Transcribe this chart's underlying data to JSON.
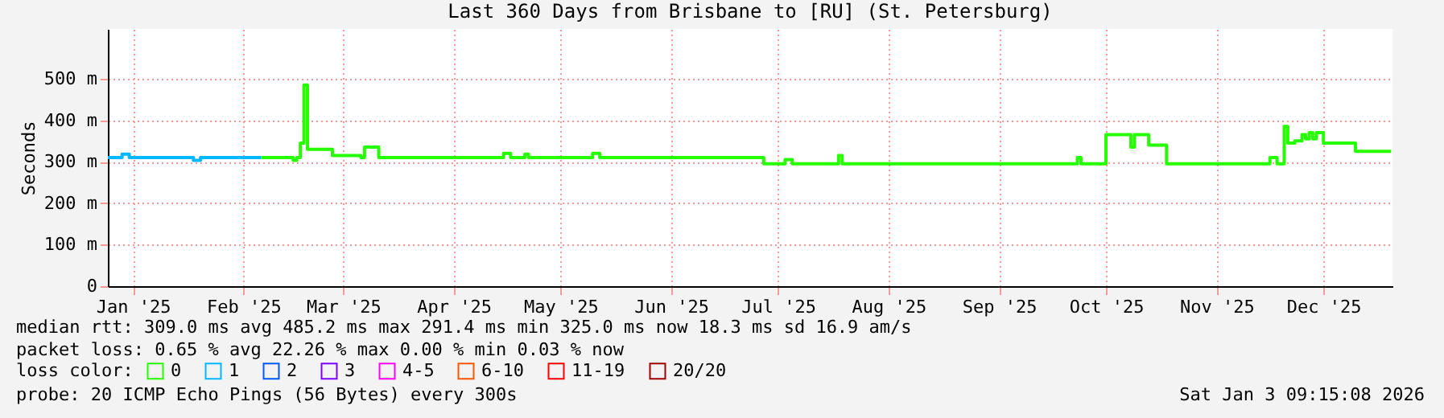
{
  "chart_data": {
    "type": "line",
    "title": "Last 360 Days from Brisbane to [RU] (St. Petersburg)",
    "ylabel": "Seconds",
    "xlim": [
      "2025-01-08T00:00",
      "2026-01-03T09:15"
    ],
    "xticks": [
      {
        "value": "2025-01-15",
        "label": "Jan '25"
      },
      {
        "value": "2025-02-15",
        "label": "Feb '25"
      },
      {
        "value": "2025-03-15",
        "label": "Mar '25"
      },
      {
        "value": "2025-04-15",
        "label": "Apr '25"
      },
      {
        "value": "2025-05-15",
        "label": "May '25"
      },
      {
        "value": "2025-06-15",
        "label": "Jun '25"
      },
      {
        "value": "2025-07-15",
        "label": "Jul '25"
      },
      {
        "value": "2025-08-15",
        "label": "Aug '25"
      },
      {
        "value": "2025-09-15",
        "label": "Sep '25"
      },
      {
        "value": "2025-10-15",
        "label": "Oct '25"
      },
      {
        "value": "2025-11-15",
        "label": "Nov '25"
      },
      {
        "value": "2025-12-15",
        "label": "Dec '25"
      }
    ],
    "ylim": [
      0,
      620
    ],
    "yticks": [
      0,
      {
        "value": 100,
        "label": "100 m"
      },
      {
        "value": 200,
        "label": "200 m"
      },
      {
        "value": 300,
        "label": "300 m"
      },
      {
        "value": 400,
        "label": "400 m"
      },
      {
        "value": 500,
        "label": "500 m"
      }
    ],
    "grid": true,
    "legend": "bottom",
    "legend_title": "loss color:",
    "marker": "none",
    "line_style": "solid",
    "series": [
      {
        "name": "0",
        "color": "#26ff00",
        "x": [
          "2025-02-20",
          "2025-02-25",
          "2025-03-01",
          "2025-03-02",
          "2025-03-03",
          "2025-03-04",
          "2025-03-05",
          "2025-03-10",
          "2025-03-12",
          "2025-03-20",
          "2025-03-21",
          "2025-03-24",
          "2025-03-25",
          "2025-04-28",
          "2025-04-29",
          "2025-05-01",
          "2025-05-05",
          "2025-05-06",
          "2025-05-23",
          "2025-05-24",
          "2025-05-26",
          "2025-07-10",
          "2025-07-11",
          "2025-07-16",
          "2025-07-17",
          "2025-07-19",
          "2025-07-31",
          "2025-08-01",
          "2025-08-02",
          "2025-10-06",
          "2025-10-07",
          "2025-10-08",
          "2025-10-14",
          "2025-10-15",
          "2025-10-21",
          "2025-10-22",
          "2025-10-23",
          "2025-10-26",
          "2025-10-27",
          "2025-10-31",
          "2025-11-01",
          "2025-11-29",
          "2025-11-30",
          "2025-12-02",
          "2025-12-03",
          "2025-12-04",
          "2025-12-05",
          "2025-12-07",
          "2025-12-09",
          "2025-12-10",
          "2025-12-11",
          "2025-12-12",
          "2025-12-13",
          "2025-12-15",
          "2025-12-23",
          "2025-12-24",
          "2026-01-03"
        ],
        "values": [
          310,
          310,
          303,
          310,
          345,
          485,
          330,
          330,
          315,
          310,
          335,
          335,
          310,
          310,
          320,
          310,
          318,
          310,
          310,
          320,
          310,
          310,
          295,
          295,
          305,
          295,
          295,
          315,
          295,
          295,
          310,
          295,
          295,
          365,
          365,
          335,
          365,
          365,
          340,
          340,
          295,
          295,
          310,
          295,
          295,
          385,
          345,
          350,
          365,
          355,
          370,
          355,
          370,
          345,
          345,
          325,
          325
        ]
      },
      {
        "name": "1",
        "color": "#00b8ff",
        "x": [
          "2025-01-08",
          "2025-01-11",
          "2025-01-12",
          "2025-01-14",
          "2025-01-31",
          "2025-02-01",
          "2025-02-03",
          "2025-02-20"
        ],
        "values": [
          310,
          310,
          318,
          310,
          310,
          303,
          310,
          310
        ]
      },
      {
        "name": "2",
        "color": "#0059ff"
      },
      {
        "name": "3",
        "color": "#7e00ff"
      },
      {
        "name": "4-5",
        "color": "#ff00ff"
      },
      {
        "name": "6-10",
        "color": "#ff5500"
      },
      {
        "name": "11-19",
        "color": "#ff0000"
      },
      {
        "name": "20/20",
        "color": "#a10000"
      }
    ],
    "annotations": [
      "median rtt:  309.0 ms avg  485.2 ms max  291.4 ms min  325.0 ms now  18.3 ms sd  16.9   am/s",
      "packet loss: 0.65 % avg  22.26 % max  0.00 % min  0.03 % now",
      "probe:       20 ICMP Echo Pings (56 Bytes) every 300s",
      "Sat Jan  3 09:15:08 2026"
    ]
  }
}
